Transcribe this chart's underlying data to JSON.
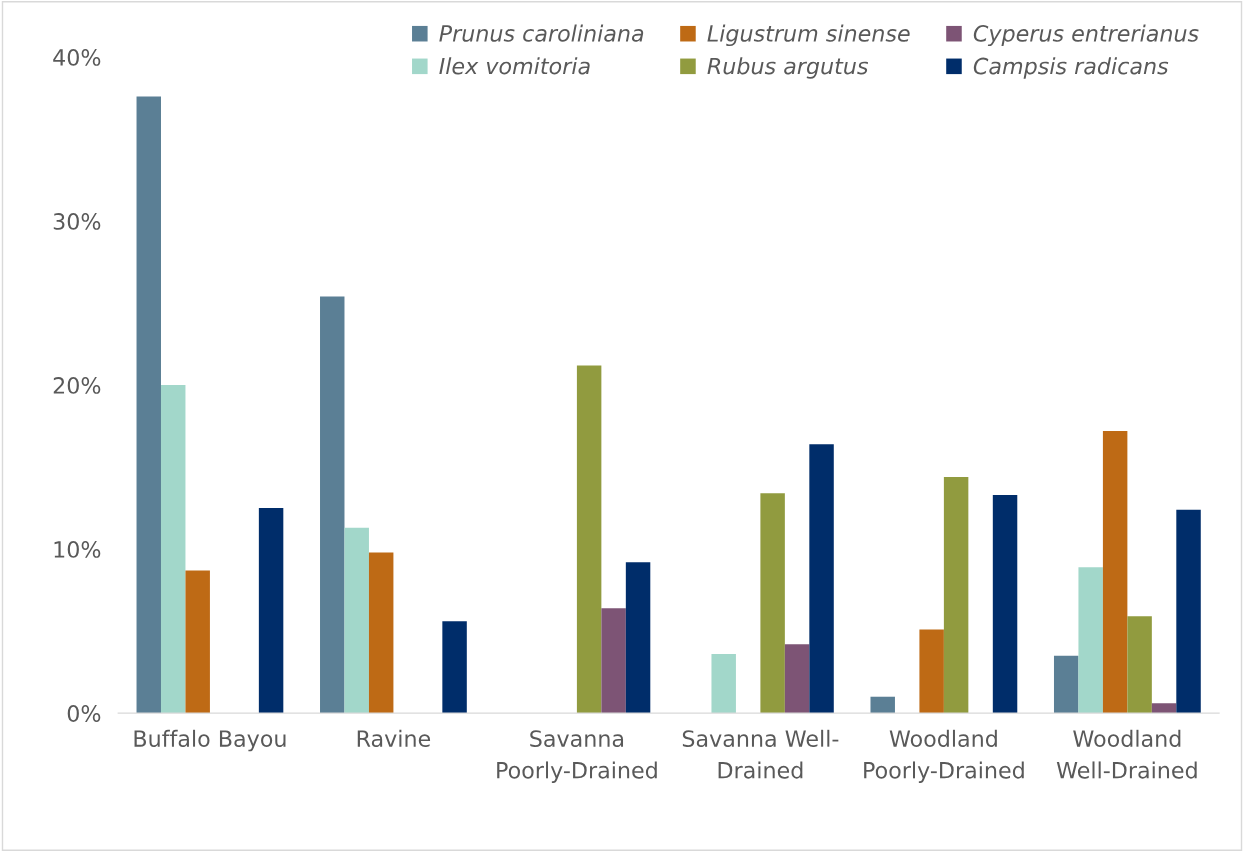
{
  "chart_data": {
    "type": "bar",
    "categories": [
      "Buffalo Bayou",
      "Ravine",
      "Savanna\nPoorly-Drained",
      "Savanna Well-\nDrained",
      "Woodland\nPoorly-Drained",
      "Woodland\nWell-Drained"
    ],
    "series": [
      {
        "name": "Prunus caroliniana",
        "color": "#5b7f95",
        "values": [
          37.6,
          25.4,
          0,
          0,
          1.0,
          3.5
        ]
      },
      {
        "name": "Ilex vomitoria",
        "color": "#a2d7ca",
        "values": [
          20.0,
          11.3,
          0,
          3.6,
          0,
          8.9
        ]
      },
      {
        "name": "Ligustrum sinense",
        "color": "#be6a15",
        "values": [
          8.7,
          9.8,
          0,
          0,
          5.1,
          17.2
        ]
      },
      {
        "name": "Rubus argutus",
        "color": "#919b3f",
        "values": [
          0,
          0,
          21.2,
          13.4,
          14.4,
          5.9
        ]
      },
      {
        "name": "Cyperus entrerianus",
        "color": "#7d5475",
        "values": [
          0,
          0,
          6.4,
          4.2,
          0,
          0.6
        ]
      },
      {
        "name": "Campsis radicans",
        "color": "#002d6a",
        "values": [
          12.5,
          5.6,
          9.2,
          16.4,
          13.3,
          12.4
        ]
      }
    ],
    "ylim": [
      0,
      40
    ],
    "yticks": [
      {
        "value": 0,
        "label": "0%"
      },
      {
        "value": 10,
        "label": "10%"
      },
      {
        "value": 20,
        "label": "20%"
      },
      {
        "value": 30,
        "label": "30%"
      },
      {
        "value": 40,
        "label": "40%"
      }
    ],
    "grid": false,
    "legend": "top right"
  }
}
